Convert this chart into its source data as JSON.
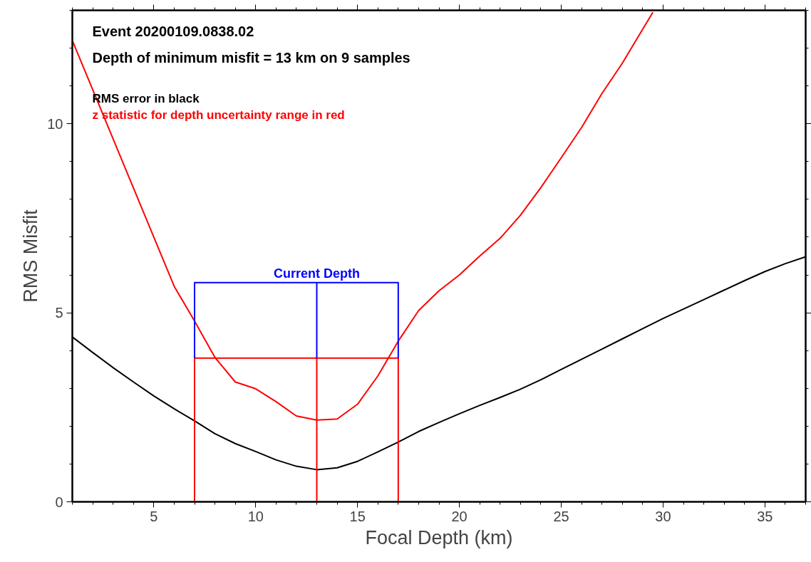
{
  "chart_data": {
    "type": "line",
    "xlabel": "Focal Depth (km)",
    "ylabel": "RMS Misfit",
    "xlim": [
      1,
      37
    ],
    "ylim": [
      0,
      13
    ],
    "xticks": [
      5,
      10,
      15,
      20,
      25,
      30,
      35
    ],
    "yticks": [
      0,
      5,
      10
    ],
    "grid": false,
    "legend": "top left",
    "annotations": [
      "Event 20200109.0838.02",
      "Depth of minimum misfit =  13 km on  9 samples",
      {
        "text": "Current Depth",
        "x": 13,
        "y": 5.8
      }
    ],
    "series": [
      {
        "name": "RMS error in black",
        "color": "#000000",
        "x": [
          1,
          2,
          3,
          4,
          5,
          6,
          7,
          8,
          9,
          10,
          11,
          12,
          13,
          14,
          15,
          16,
          17,
          18,
          19,
          20,
          21,
          22,
          23,
          24,
          25,
          26,
          27,
          28,
          29,
          30,
          31,
          32,
          33,
          34,
          35,
          36,
          37
        ],
        "values": [
          4.36,
          3.95,
          3.55,
          3.17,
          2.8,
          2.46,
          2.14,
          1.8,
          1.54,
          1.33,
          1.11,
          0.94,
          0.85,
          0.9,
          1.07,
          1.32,
          1.58,
          1.86,
          2.1,
          2.33,
          2.55,
          2.76,
          2.98,
          3.23,
          3.5,
          3.77,
          4.04,
          4.31,
          4.58,
          4.85,
          5.1,
          5.35,
          5.6,
          5.85,
          6.09,
          6.3,
          6.48
        ]
      },
      {
        "name": "z statistic for depth uncertainty range in red",
        "color": "#ff0000",
        "x": [
          1,
          2,
          3,
          4,
          5,
          6,
          7,
          8,
          9,
          10,
          11,
          12,
          13,
          14,
          15,
          16,
          17,
          18,
          19,
          20,
          21,
          22,
          23,
          24,
          25,
          26,
          27,
          28,
          29,
          29.5
        ],
        "values": [
          12.2,
          10.9,
          9.6,
          8.3,
          7.0,
          5.7,
          4.78,
          3.82,
          3.17,
          2.99,
          2.65,
          2.27,
          2.16,
          2.19,
          2.58,
          3.33,
          4.25,
          5.06,
          5.58,
          6.0,
          6.5,
          6.97,
          7.58,
          8.31,
          9.1,
          9.9,
          10.8,
          11.6,
          12.5,
          12.95
        ]
      },
      {
        "color": "#ff0000",
        "x": [
          7,
          7,
          17,
          17
        ],
        "values": [
          0,
          3.8,
          3.8,
          0
        ]
      },
      {
        "color": "#ff0000",
        "x": [
          13,
          13
        ],
        "values": [
          0,
          3.8
        ]
      },
      {
        "color": "#0000ff",
        "x": [
          7,
          7,
          17,
          17
        ],
        "values": [
          3.8,
          5.8,
          5.8,
          3.8
        ]
      },
      {
        "color": "#0000ff",
        "x": [
          13,
          13
        ],
        "values": [
          3.8,
          5.8
        ]
      }
    ]
  }
}
